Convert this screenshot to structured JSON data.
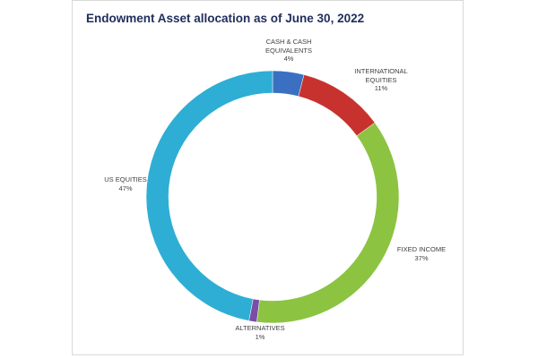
{
  "chart_data": {
    "type": "donut",
    "title": "Endowment Asset allocation as of June 30, 2022",
    "categories": [
      "CASH & CASH EQUIVALENTS",
      "INTERNATIONAL EQUITIES",
      "FIXED INCOME",
      "ALTERNATIVES",
      "US EQUITIES"
    ],
    "values": [
      4,
      11,
      37,
      1,
      47
    ],
    "value_labels": [
      "4%",
      "11%",
      "37%",
      "1%",
      "47%"
    ],
    "colors": [
      "#3b6fc1",
      "#c8322e",
      "#8cc341",
      "#7a4ea6",
      "#2eaed4"
    ]
  }
}
